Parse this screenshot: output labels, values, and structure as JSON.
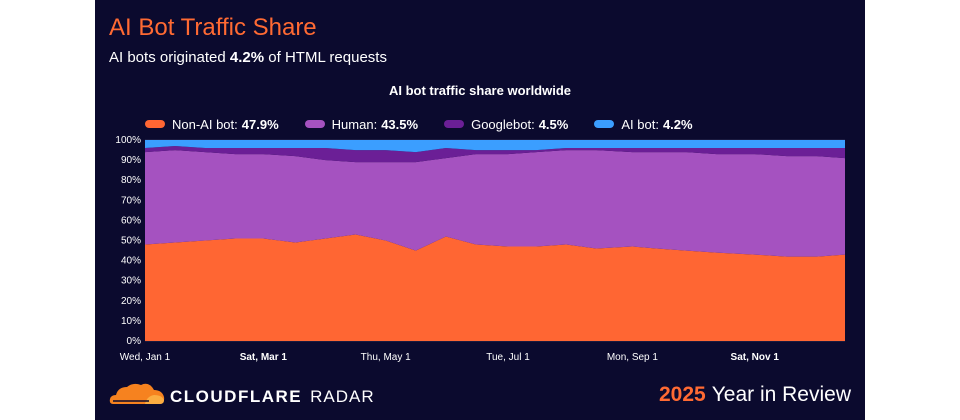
{
  "header": {
    "title": "AI Bot Traffic Share",
    "subtitle_prefix": "AI bots originated",
    "subtitle_value": "4.2%",
    "subtitle_suffix": "of HTML requests"
  },
  "footer": {
    "brand": "CLOUDFLARE",
    "product": "RADAR",
    "year": "2025",
    "year_text": "Year in Review"
  },
  "chart_data": {
    "type": "area",
    "stacked": true,
    "title": "AI bot traffic share worldwide",
    "xlabel": "",
    "ylabel": "",
    "ylim": [
      0,
      100
    ],
    "grid": true,
    "legend_position": "top",
    "x_ticks": [
      {
        "label": "Wed, Jan 1",
        "day": 0,
        "bold": false
      },
      {
        "label": "Sat, Mar 1",
        "day": 59,
        "bold": true
      },
      {
        "label": "Thu, May 1",
        "day": 120,
        "bold": false
      },
      {
        "label": "Tue, Jul 1",
        "day": 181,
        "bold": false
      },
      {
        "label": "Mon, Sep 1",
        "day": 243,
        "bold": false
      },
      {
        "label": "Sat, Nov 1",
        "day": 304,
        "bold": true
      }
    ],
    "y_ticks": [
      "0%",
      "10%",
      "20%",
      "30%",
      "40%",
      "50%",
      "60%",
      "70%",
      "80%",
      "90%",
      "100%"
    ],
    "x_range": [
      0,
      349
    ],
    "x": [
      0,
      15,
      30,
      45,
      59,
      75,
      90,
      105,
      120,
      135,
      150,
      165,
      181,
      195,
      210,
      225,
      243,
      255,
      270,
      285,
      304,
      320,
      335,
      349
    ],
    "series": [
      {
        "name": "Non-AI bot",
        "legend_value": "47.9%",
        "color": "#ff6633",
        "values": [
          48,
          49,
          50,
          51,
          51,
          49,
          51,
          53,
          50,
          45,
          52,
          48,
          47,
          47,
          48,
          46,
          47,
          46,
          45,
          44,
          43,
          42,
          42,
          43
        ]
      },
      {
        "name": "Human",
        "legend_value": "43.5%",
        "color": "#a552c0",
        "values": [
          46,
          46,
          44,
          42,
          42,
          43,
          39,
          36,
          39,
          44,
          39,
          45,
          46,
          47,
          47,
          49,
          47,
          48,
          49,
          49,
          50,
          50,
          50,
          48
        ]
      },
      {
        "name": "Googlebot",
        "legend_value": "4.5%",
        "color": "#6b1f96",
        "values": [
          2,
          2,
          2,
          3,
          3,
          4,
          6,
          6,
          6,
          5,
          5,
          2,
          2,
          1,
          1,
          1,
          2,
          2,
          2,
          3,
          3,
          4,
          4,
          5
        ]
      },
      {
        "name": "AI bot",
        "legend_value": "4.2%",
        "color": "#3b9eff",
        "values": [
          4,
          3,
          4,
          4,
          4,
          4,
          4,
          5,
          5,
          6,
          4,
          5,
          5,
          5,
          4,
          4,
          4,
          4,
          4,
          4,
          4,
          4,
          4,
          4
        ]
      }
    ]
  }
}
